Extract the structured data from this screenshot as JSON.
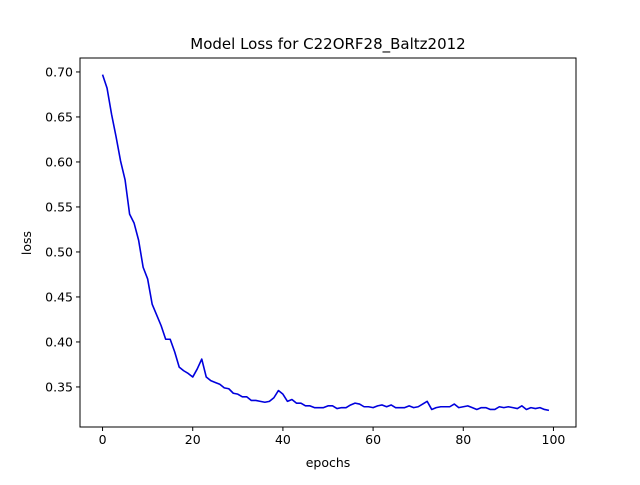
{
  "chart_data": {
    "type": "line",
    "title": "Model Loss for C22ORF28_Baltz2012",
    "xlabel": "epochs",
    "ylabel": "loss",
    "xlim": [
      -5,
      105
    ],
    "ylim": [
      0.3055,
      0.7155
    ],
    "xticks": [
      0,
      20,
      40,
      60,
      80,
      100
    ],
    "yticks": [
      0.35,
      0.4,
      0.45,
      0.5,
      0.55,
      0.6,
      0.65,
      0.7
    ],
    "grid": false,
    "legend": "none",
    "series": [
      {
        "color": "#0000dd",
        "x": [
          0,
          1,
          2,
          3,
          4,
          5,
          6,
          7,
          8,
          9,
          10,
          11,
          12,
          13,
          14,
          15,
          16,
          17,
          18,
          19,
          20,
          21,
          22,
          23,
          24,
          25,
          26,
          27,
          28,
          29,
          30,
          31,
          32,
          33,
          34,
          35,
          36,
          37,
          38,
          39,
          40,
          41,
          42,
          43,
          44,
          45,
          46,
          47,
          48,
          49,
          50,
          51,
          52,
          53,
          54,
          55,
          56,
          57,
          58,
          59,
          60,
          61,
          62,
          63,
          64,
          65,
          66,
          67,
          68,
          69,
          70,
          71,
          72,
          73,
          74,
          75,
          76,
          77,
          78,
          79,
          80,
          81,
          82,
          83,
          84,
          85,
          86,
          87,
          88,
          89,
          90,
          91,
          92,
          93,
          94,
          95,
          96,
          97,
          98,
          99
        ],
        "y": [
          0.697,
          0.682,
          0.653,
          0.628,
          0.601,
          0.58,
          0.542,
          0.532,
          0.513,
          0.483,
          0.47,
          0.442,
          0.43,
          0.418,
          0.403,
          0.403,
          0.389,
          0.372,
          0.368,
          0.365,
          0.361,
          0.37,
          0.381,
          0.361,
          0.357,
          0.355,
          0.353,
          0.349,
          0.348,
          0.343,
          0.342,
          0.339,
          0.339,
          0.335,
          0.335,
          0.334,
          0.333,
          0.334,
          0.338,
          0.346,
          0.342,
          0.334,
          0.336,
          0.332,
          0.332,
          0.329,
          0.329,
          0.327,
          0.327,
          0.327,
          0.329,
          0.329,
          0.326,
          0.327,
          0.327,
          0.33,
          0.332,
          0.331,
          0.328,
          0.328,
          0.327,
          0.329,
          0.33,
          0.328,
          0.33,
          0.327,
          0.327,
          0.327,
          0.329,
          0.327,
          0.328,
          0.331,
          0.334,
          0.325,
          0.327,
          0.328,
          0.328,
          0.328,
          0.331,
          0.327,
          0.328,
          0.329,
          0.327,
          0.325,
          0.327,
          0.327,
          0.325,
          0.325,
          0.328,
          0.327,
          0.328,
          0.327,
          0.326,
          0.329,
          0.325,
          0.327,
          0.326,
          0.327,
          0.325,
          0.324
        ]
      }
    ]
  }
}
